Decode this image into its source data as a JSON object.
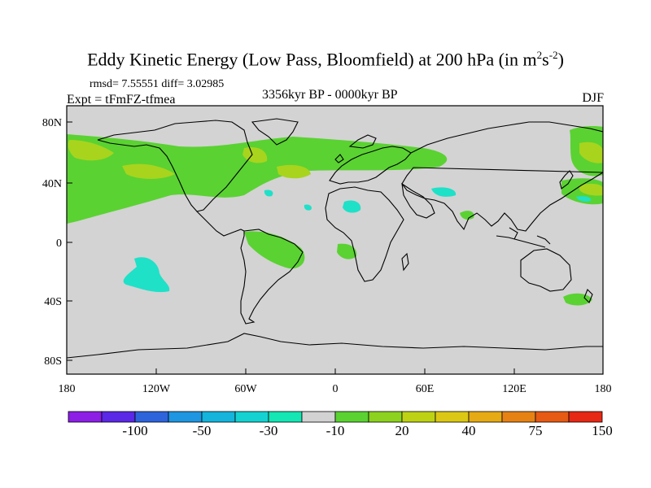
{
  "title": {
    "main_text": "Eddy Kinetic Energy (Low Pass, Bloomfield) at 200 hPa (in m",
    "sup1": "2",
    "mid": "s",
    "sup2": "-2",
    "close": ")"
  },
  "stats": {
    "rmsd_label": "rmsd=",
    "rmsd": "7.55551",
    "diff_label": "diff=",
    "diff": "3.02985"
  },
  "experiment": "Expt = tFmFZ-tfmea",
  "period": "3356kyr BP - 0000kyr BP",
  "season": "DJF",
  "axes": {
    "lat_labels": [
      "80N",
      "40N",
      "0",
      "40S",
      "80S"
    ],
    "lon_labels": [
      "180",
      "120W",
      "60W",
      "0",
      "60E",
      "120E",
      "180"
    ]
  },
  "colorbar": {
    "colors": [
      "#8c1ee6",
      "#5a28e6",
      "#2d64dc",
      "#1e96e1",
      "#14b4dc",
      "#14d2d2",
      "#14e6b4",
      "#d2d2d2",
      "#5ad232",
      "#8cd21e",
      "#bed214",
      "#dcc814",
      "#e6aa14",
      "#e68214",
      "#e65a14",
      "#e62814"
    ],
    "labels": [
      "-100",
      "-50",
      "-30",
      "-10",
      "20",
      "40",
      "75",
      "150"
    ]
  },
  "map_colors": {
    "ocean_bg": "#d3d3d3",
    "green": "#5ad232",
    "yellowgreen": "#a8d41e",
    "cyan": "#1ee1c8"
  }
}
